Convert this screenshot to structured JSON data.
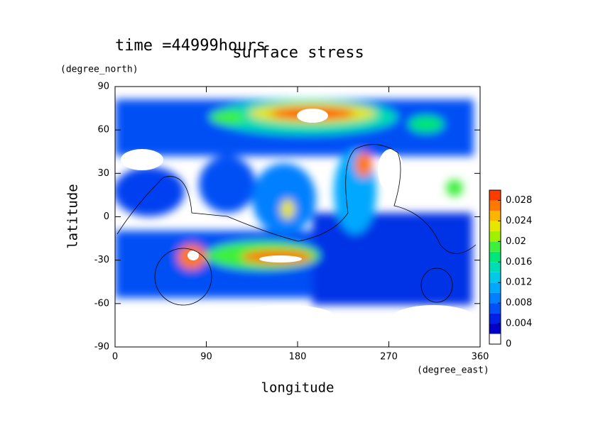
{
  "chart_data": {
    "type": "contour",
    "title": "surface stress",
    "subtitle": "time =44999hours",
    "x_label": "longitude",
    "y_label": "latitude",
    "x_units": "(degree_east)",
    "y_units": "(degree_north)",
    "xlim": [
      0,
      360
    ],
    "xticks": [
      0,
      90,
      180,
      270,
      360
    ],
    "ylim": [
      -90,
      90
    ],
    "yticks": [
      -90,
      -60,
      -30,
      0,
      30,
      60,
      90
    ],
    "colorbar": {
      "lim": [
        0,
        0.03
      ],
      "ticks": [
        0,
        0.004,
        0.008,
        0.012,
        0.016,
        0.02,
        0.024,
        0.028
      ],
      "colors": [
        "#ffffff",
        "#0000c8",
        "#0020e6",
        "#0050f5",
        "#0080ff",
        "#00a8ff",
        "#00c8e6",
        "#00dcb4",
        "#00e678",
        "#3cf03c",
        "#a0f000",
        "#e6e600",
        "#ffb400",
        "#ff7800",
        "#ff3c00"
      ]
    }
  }
}
